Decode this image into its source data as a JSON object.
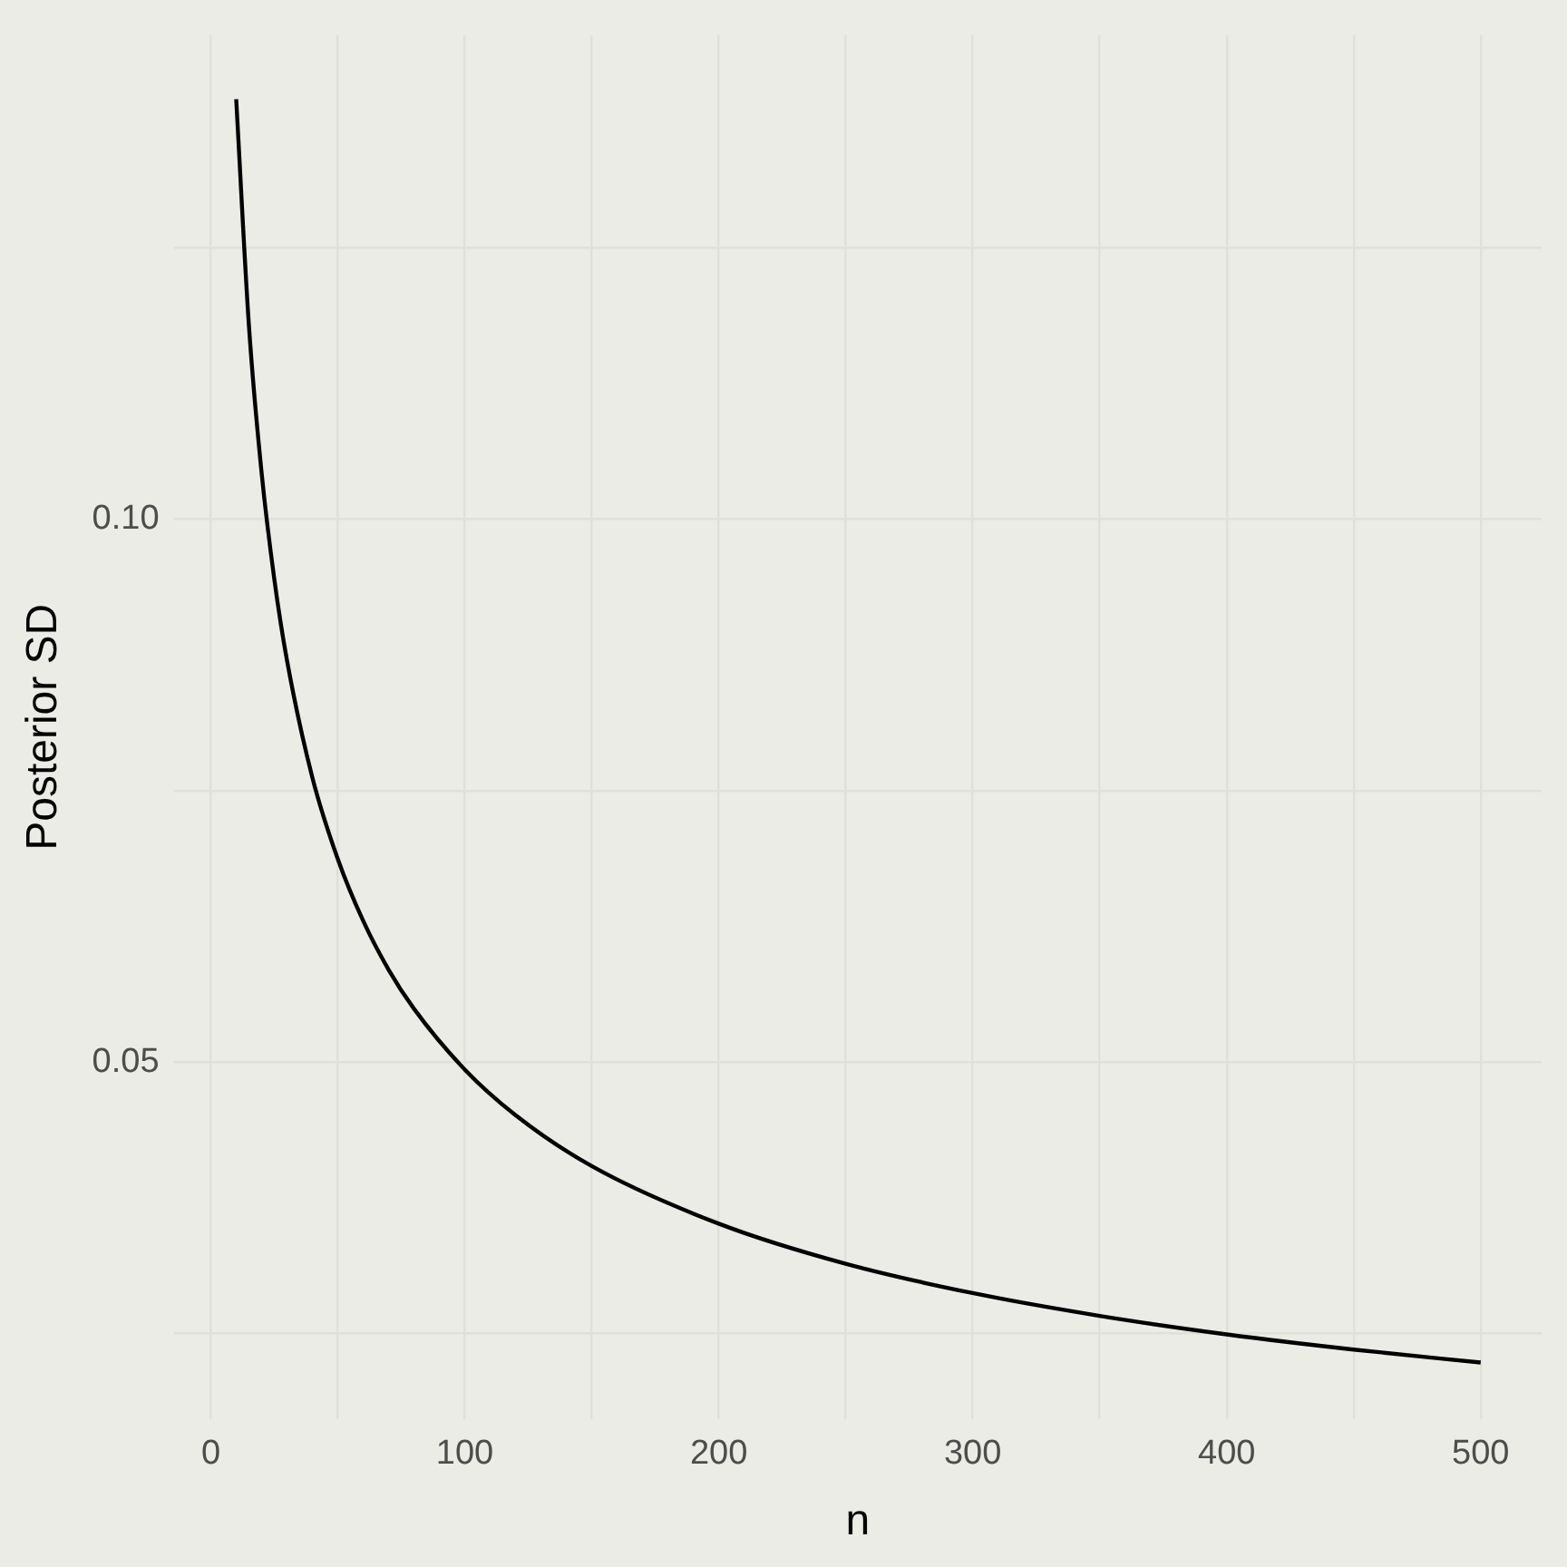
{
  "chart_data": {
    "type": "line",
    "xlabel": "n",
    "ylabel": "Posterior SD",
    "series": [
      {
        "color": "#000000",
        "x": [
          10,
          15,
          20,
          25,
          30,
          40,
          50,
          60,
          70,
          80,
          100,
          120,
          150,
          200,
          250,
          300,
          350,
          400,
          450,
          500
        ],
        "values": [
          0.1387,
          0.1179,
          0.1043,
          0.0945,
          0.087,
          0.0762,
          0.0687,
          0.063,
          0.0585,
          0.0549,
          0.0493,
          0.0451,
          0.0404,
          0.0351,
          0.0314,
          0.0287,
          0.0266,
          0.0249,
          0.0235,
          0.0223
        ]
      }
    ],
    "xlim": [
      -14.6,
      524
    ],
    "ylim": [
      0.0171,
      0.1446
    ],
    "xticks": [
      0,
      {
        "value": 50,
        "label": null
      },
      100,
      {
        "value": 150,
        "label": null
      },
      200,
      {
        "value": 250,
        "label": null
      },
      300,
      {
        "value": 350,
        "label": null
      },
      400,
      {
        "value": 450,
        "label": null
      },
      500
    ],
    "yticks": [
      {
        "value": 0.025,
        "label": null
      },
      {
        "value": 0.05,
        "label": "0.05"
      },
      {
        "value": 0.075,
        "label": null
      },
      {
        "value": 0.1,
        "label": "0.10"
      },
      {
        "value": 0.125,
        "label": null
      }
    ],
    "grid": true,
    "legend": false,
    "marker": "none",
    "line_style": "solid"
  }
}
